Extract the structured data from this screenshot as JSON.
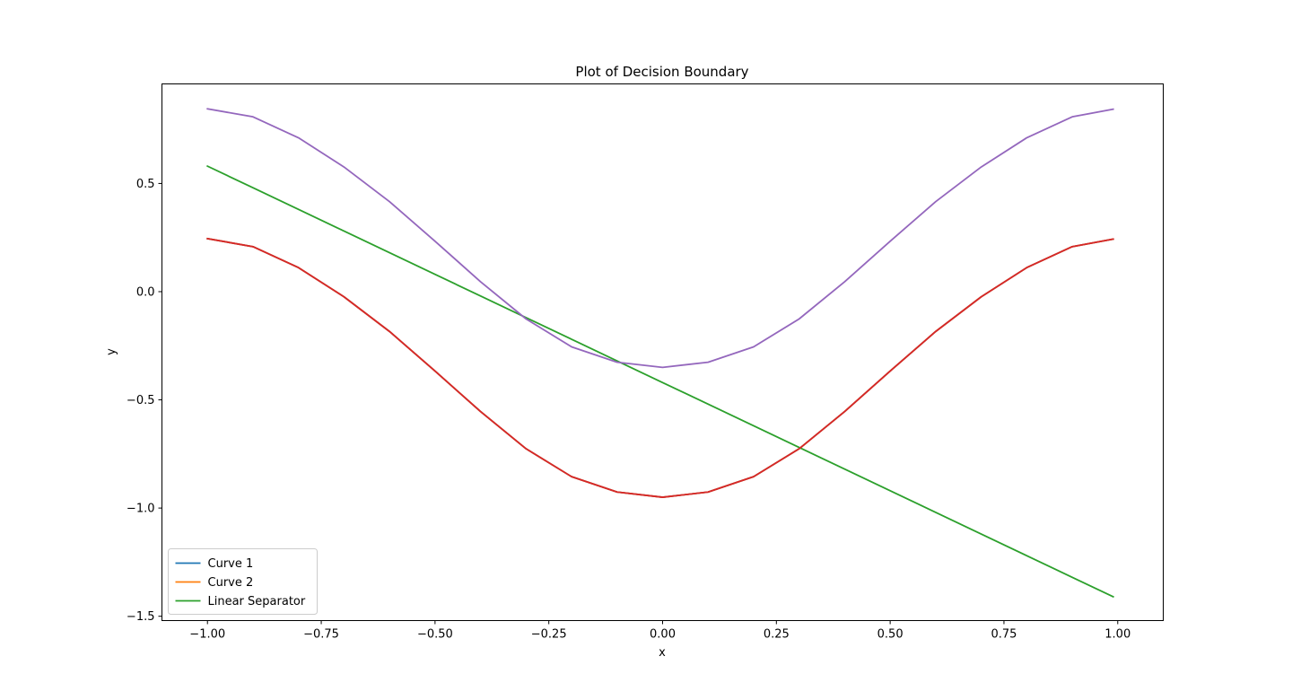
{
  "chart_data": {
    "type": "line",
    "title": "Plot of Decision Boundary",
    "xlabel": "x",
    "ylabel": "y",
    "xlim": [
      -1.1,
      1.1
    ],
    "ylim": [
      -1.52,
      0.96
    ],
    "grid": false,
    "legend_position": "lower-left",
    "x_ticks": [
      -1.0,
      -0.75,
      -0.5,
      -0.25,
      0.0,
      0.25,
      0.5,
      0.75,
      1.0
    ],
    "x_tick_labels": [
      "−1.00",
      "−0.75",
      "−0.50",
      "−0.25",
      "0.00",
      "0.25",
      "0.50",
      "0.75",
      "1.00"
    ],
    "y_ticks": [
      -1.5,
      -1.0,
      -0.5,
      0.0,
      0.5
    ],
    "y_tick_labels": [
      "−1.5",
      "−1.0",
      "−0.5",
      "0.0",
      "0.5"
    ],
    "x": [
      -1.0,
      -0.9,
      -0.8,
      -0.7,
      -0.6,
      -0.5,
      -0.4,
      -0.3,
      -0.2,
      -0.1,
      0.0,
      0.1,
      0.2,
      0.3,
      0.4,
      0.5,
      0.6,
      0.7,
      0.8,
      0.9,
      0.99
    ],
    "series": [
      {
        "name": "Curve 1",
        "color": "#1f77b4",
        "in_legend": true,
        "values": [
          0.245,
          0.208,
          0.111,
          -0.024,
          -0.184,
          -0.367,
          -0.554,
          -0.726,
          -0.855,
          -0.926,
          -0.95,
          -0.926,
          -0.855,
          -0.726,
          -0.554,
          -0.367,
          -0.184,
          -0.024,
          0.111,
          0.208,
          0.243
        ]
      },
      {
        "name": "Curve 2",
        "color": "#ff7f0e",
        "in_legend": true,
        "values": [
          0.245,
          0.208,
          0.111,
          -0.024,
          -0.184,
          -0.367,
          -0.554,
          -0.726,
          -0.855,
          -0.926,
          -0.95,
          -0.926,
          -0.855,
          -0.726,
          -0.554,
          -0.367,
          -0.184,
          -0.024,
          0.111,
          0.208,
          0.243
        ]
      },
      {
        "name": "Linear Separator",
        "color": "#2ca02c",
        "in_legend": true,
        "values": [
          0.58,
          0.48,
          0.38,
          0.28,
          0.18,
          0.08,
          -0.02,
          -0.12,
          -0.22,
          -0.32,
          -0.42,
          -0.52,
          -0.62,
          -0.72,
          -0.82,
          -0.92,
          -1.02,
          -1.12,
          -1.22,
          -1.32,
          -1.41
        ]
      },
      {
        "color": "#d62728",
        "in_legend": false,
        "values": [
          0.245,
          0.208,
          0.111,
          -0.024,
          -0.184,
          -0.367,
          -0.554,
          -0.726,
          -0.855,
          -0.926,
          -0.95,
          -0.926,
          -0.855,
          -0.726,
          -0.554,
          -0.367,
          -0.184,
          -0.024,
          0.111,
          0.208,
          0.243
        ]
      },
      {
        "color": "#9467bd",
        "in_legend": false,
        "values": [
          0.845,
          0.808,
          0.711,
          0.576,
          0.416,
          0.233,
          0.046,
          -0.126,
          -0.255,
          -0.326,
          -0.35,
          -0.326,
          -0.255,
          -0.126,
          0.046,
          0.233,
          0.416,
          0.576,
          0.711,
          0.808,
          0.843
        ]
      }
    ]
  }
}
